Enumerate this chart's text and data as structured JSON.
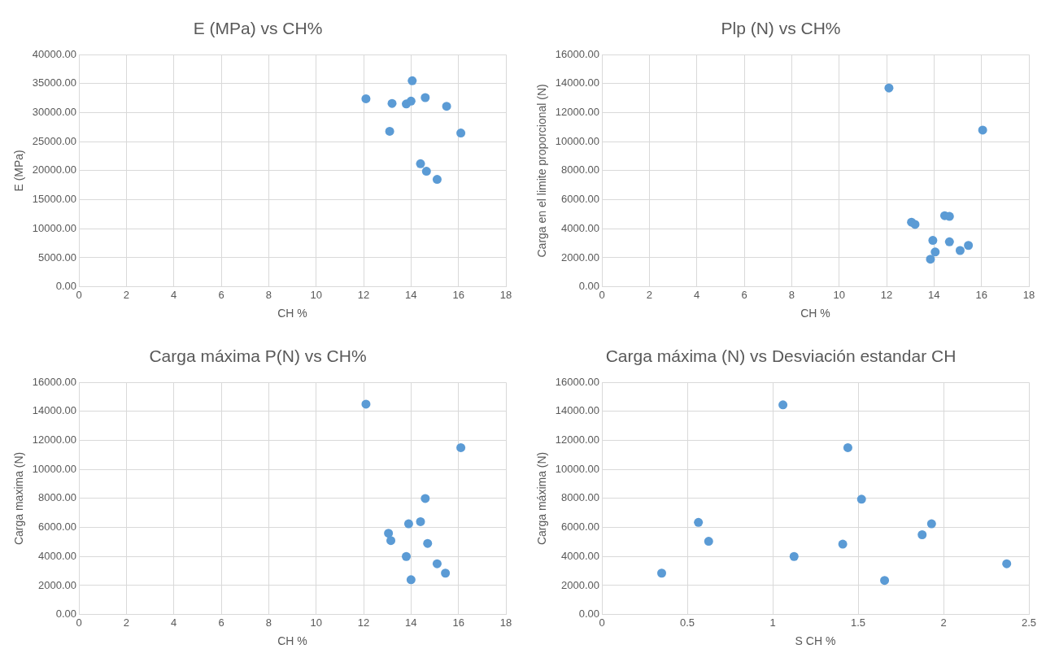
{
  "chart_data": [
    {
      "type": "scatter",
      "title": "E (MPa) vs CH%",
      "xlabel": "CH %",
      "ylabel": "E (MPa)",
      "grid": true,
      "legend": false,
      "marker": "circle",
      "xlim": [
        0,
        18
      ],
      "xticks": [
        0,
        2,
        4,
        6,
        8,
        10,
        12,
        14,
        16,
        18
      ],
      "ylim": [
        0,
        40000
      ],
      "yticks": [
        {
          "value": 0,
          "label": "0.00"
        },
        {
          "value": 5000,
          "label": "5000.00"
        },
        {
          "value": 10000,
          "label": "10000.00"
        },
        {
          "value": 15000,
          "label": "15000.00"
        },
        {
          "value": 20000,
          "label": "20000.00"
        },
        {
          "value": 25000,
          "label": "25000.00"
        },
        {
          "value": 30000,
          "label": "30000.00"
        },
        {
          "value": 35000,
          "label": "35000.00"
        },
        {
          "value": 40000,
          "label": "40000.00"
        }
      ],
      "series": [
        {
          "color": "#5b9bd5",
          "x": [
            12.1,
            13.2,
            13.1,
            13.8,
            14.0,
            14.05,
            14.6,
            15.5,
            16.1,
            14.4,
            14.65,
            15.1
          ],
          "values": [
            32400,
            31600,
            26800,
            31500,
            32000,
            35500,
            32600,
            31100,
            26500,
            21200,
            19900,
            18500
          ]
        }
      ]
    },
    {
      "type": "scatter",
      "title": "Plp (N) vs CH%",
      "xlabel": "CH %",
      "ylabel": "Carga en el limite proporcional (N)",
      "grid": true,
      "legend": false,
      "marker": "circle",
      "xlim": [
        0,
        18
      ],
      "xticks": [
        0,
        2,
        4,
        6,
        8,
        10,
        12,
        14,
        16,
        18
      ],
      "ylim": [
        0,
        16000
      ],
      "yticks": [
        {
          "value": 0,
          "label": "0.00"
        },
        {
          "value": 2000,
          "label": "2000.00"
        },
        {
          "value": 4000,
          "label": "4000.00"
        },
        {
          "value": 6000,
          "label": "6000.00"
        },
        {
          "value": 8000,
          "label": "8000.00"
        },
        {
          "value": 10000,
          "label": "10000.00"
        },
        {
          "value": 12000,
          "label": "12000.00"
        },
        {
          "value": 14000,
          "label": "14000.00"
        },
        {
          "value": 16000,
          "label": "16000.00"
        }
      ],
      "series": [
        {
          "color": "#5b9bd5",
          "x": [
            12.1,
            16.05,
            13.05,
            13.2,
            14.45,
            14.65,
            13.95,
            14.65,
            14.05,
            13.85,
            15.1,
            15.45
          ],
          "values": [
            13700,
            10800,
            4450,
            4300,
            4900,
            4850,
            3200,
            3100,
            2400,
            1900,
            2500,
            2850
          ]
        }
      ]
    },
    {
      "type": "scatter",
      "title": "Carga máxima P(N) vs CH%",
      "xlabel": "CH %",
      "ylabel": "Carga maxima (N)",
      "grid": true,
      "legend": false,
      "marker": "circle",
      "xlim": [
        0,
        18
      ],
      "xticks": [
        0,
        2,
        4,
        6,
        8,
        10,
        12,
        14,
        16,
        18
      ],
      "ylim": [
        0,
        16000
      ],
      "yticks": [
        {
          "value": 0,
          "label": "0.00"
        },
        {
          "value": 2000,
          "label": "2000.00"
        },
        {
          "value": 4000,
          "label": "4000.00"
        },
        {
          "value": 6000,
          "label": "6000.00"
        },
        {
          "value": 8000,
          "label": "8000.00"
        },
        {
          "value": 10000,
          "label": "10000.00"
        },
        {
          "value": 12000,
          "label": "12000.00"
        },
        {
          "value": 14000,
          "label": "14000.00"
        },
        {
          "value": 16000,
          "label": "16000.00"
        }
      ],
      "series": [
        {
          "color": "#5b9bd5",
          "x": [
            12.1,
            16.1,
            14.6,
            13.9,
            14.4,
            13.05,
            13.15,
            14.7,
            13.8,
            15.1,
            15.45,
            14.0
          ],
          "values": [
            14500,
            11500,
            8000,
            6250,
            6400,
            5600,
            5100,
            4900,
            4000,
            3500,
            2850,
            2400
          ]
        }
      ]
    },
    {
      "type": "scatter",
      "title": "Carga máxima (N) vs Desviación estandar CH",
      "xlabel": "S CH %",
      "ylabel": "Carga máxima (N)",
      "grid": true,
      "legend": false,
      "marker": "circle",
      "xlim": [
        0,
        2.5
      ],
      "xticks": [
        0,
        0.5,
        1,
        1.5,
        2,
        2.5
      ],
      "ylim": [
        0,
        16000
      ],
      "yticks": [
        {
          "value": 0,
          "label": "0.00"
        },
        {
          "value": 2000,
          "label": "2000.00"
        },
        {
          "value": 4000,
          "label": "4000.00"
        },
        {
          "value": 6000,
          "label": "6000.00"
        },
        {
          "value": 8000,
          "label": "8000.00"
        },
        {
          "value": 10000,
          "label": "10000.00"
        },
        {
          "value": 12000,
          "label": "12000.00"
        },
        {
          "value": 14000,
          "label": "14000.00"
        },
        {
          "value": 16000,
          "label": "16000.00"
        }
      ],
      "series": [
        {
          "color": "#5b9bd5",
          "x": [
            0.35,
            0.565,
            0.625,
            1.06,
            1.125,
            1.41,
            1.44,
            1.52,
            1.655,
            1.875,
            1.93,
            2.37
          ],
          "values": [
            2850,
            6350,
            5050,
            14450,
            4000,
            4850,
            11500,
            7950,
            2350,
            5500,
            6250,
            3500
          ]
        }
      ]
    }
  ]
}
